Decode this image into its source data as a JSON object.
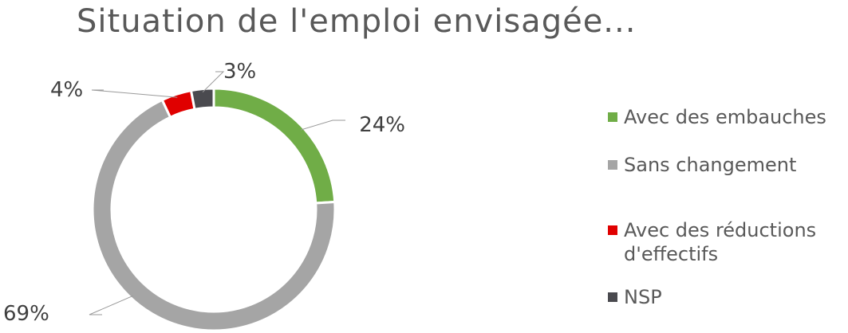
{
  "chart_data": {
    "type": "pie",
    "variant": "donut",
    "title": "Situation de l'emploi envisagée...",
    "series": [
      {
        "name": "Avec des embauches",
        "value": 24,
        "label": "24%",
        "color": "#70ad47"
      },
      {
        "name": "Sans changement",
        "value": 69,
        "label": "69%",
        "color": "#a5a5a5"
      },
      {
        "name": "Avec des réductions d'effectifs",
        "value": 4,
        "label": "4%",
        "color": "#e00000"
      },
      {
        "name": "NSP",
        "value": 3,
        "label": "3%",
        "color": "#4a4a4f"
      }
    ],
    "legend": {
      "position": "right",
      "items": [
        {
          "label": "Avec des embauches",
          "color": "#70ad47"
        },
        {
          "label": "Sans changement",
          "color": "#a5a5a5"
        },
        {
          "label": "Avec des réductions\nd'effectifs",
          "color": "#e00000"
        },
        {
          "label": "NSP",
          "color": "#4a4a4f"
        }
      ]
    }
  }
}
